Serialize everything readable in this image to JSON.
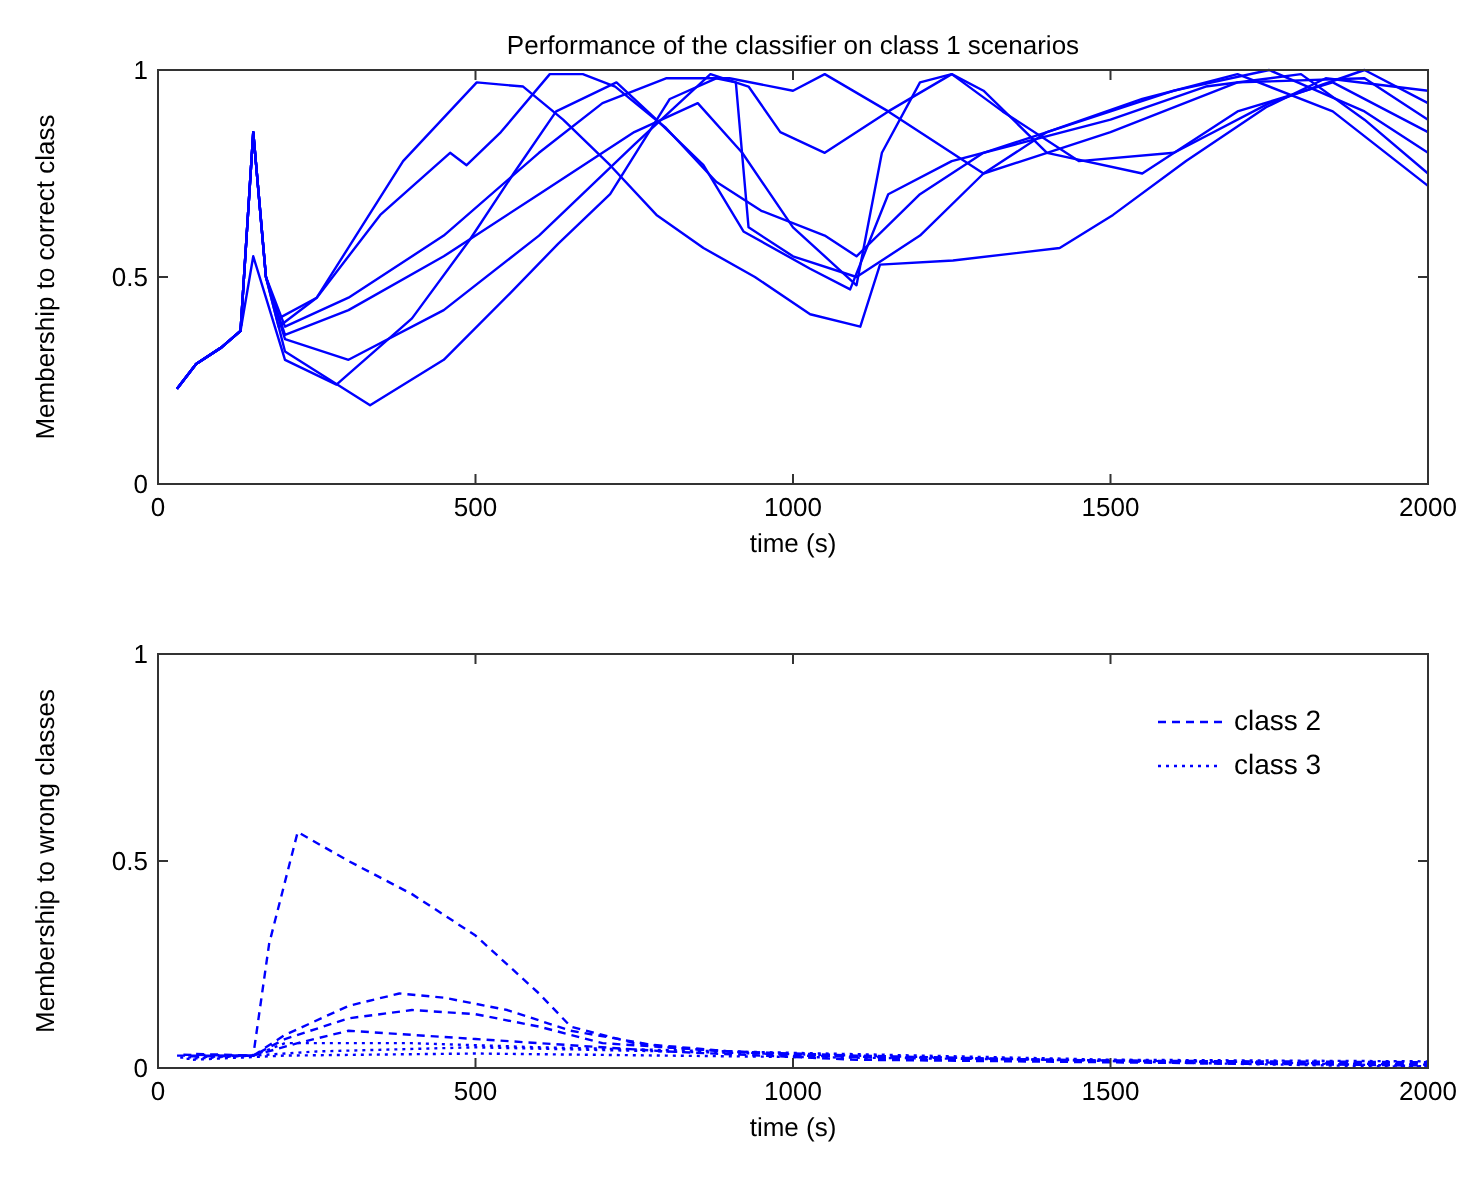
{
  "chart_data": [
    {
      "type": "line",
      "title": "Performance of the classifier on class 1 scenarios",
      "xlabel": "time (s)",
      "ylabel": "Membership to correct class",
      "xlim": [
        0,
        2000
      ],
      "xticks": [
        0,
        500,
        1000,
        1500,
        2000
      ],
      "ylim": [
        0,
        1
      ],
      "yticks": [
        0,
        0.5,
        1
      ],
      "grid": false,
      "legend": false,
      "line_style": "solid",
      "series": [
        {
          "color": "#0000ff",
          "x": [
            30,
            60,
            100,
            130,
            150,
            170,
            190,
            250,
            386,
            502,
            575,
            638,
            712,
            785,
            859,
            940,
            1027,
            1106,
            1137,
            1252,
            1420,
            1504,
            1619,
            1745,
            1839,
            2000
          ],
          "values": [
            0.23,
            0.29,
            0.33,
            0.37,
            0.85,
            0.5,
            0.4,
            0.45,
            0.78,
            0.97,
            0.96,
            0.88,
            0.77,
            0.65,
            0.57,
            0.5,
            0.41,
            0.38,
            0.53,
            0.54,
            0.57,
            0.65,
            0.78,
            0.91,
            0.98,
            0.95
          ]
        },
        {
          "color": "#0000ff",
          "x": [
            30,
            60,
            100,
            130,
            150,
            170,
            190,
            250,
            350,
            460,
            486,
            540,
            617,
            669,
            720,
            800,
            879,
            950,
            1050,
            1100,
            1200,
            1300,
            1400,
            1500,
            1600,
            1750,
            1900,
            2000
          ],
          "values": [
            0.23,
            0.29,
            0.33,
            0.37,
            0.85,
            0.5,
            0.38,
            0.45,
            0.65,
            0.8,
            0.77,
            0.85,
            0.99,
            0.99,
            0.96,
            0.86,
            0.73,
            0.66,
            0.6,
            0.55,
            0.7,
            0.8,
            0.85,
            0.9,
            0.95,
            1,
            0.9,
            0.8
          ]
        },
        {
          "color": "#0000ff",
          "x": [
            30,
            60,
            100,
            130,
            150,
            170,
            200,
            281,
            400,
            491,
            560,
            627,
            722,
            785,
            859,
            922,
            1027,
            1090,
            1150,
            1250,
            1350,
            1500,
            1650,
            1800,
            1900,
            2000
          ],
          "values": [
            0.23,
            0.29,
            0.33,
            0.37,
            0.55,
            0.45,
            0.3,
            0.24,
            0.4,
            0.59,
            0.75,
            0.9,
            0.97,
            0.88,
            0.77,
            0.61,
            0.52,
            0.47,
            0.7,
            0.78,
            0.82,
            0.88,
            0.96,
            0.99,
            0.88,
            0.75
          ]
        },
        {
          "color": "#0000ff",
          "x": [
            30,
            60,
            100,
            130,
            150,
            170,
            200,
            334,
            450,
            554,
            630,
            712,
            806,
            879,
            910,
            930,
            1000,
            1100,
            1200,
            1300,
            1400,
            1550,
            1700,
            1850,
            2000
          ],
          "values": [
            0.23,
            0.29,
            0.33,
            0.37,
            0.85,
            0.5,
            0.32,
            0.19,
            0.3,
            0.46,
            0.58,
            0.7,
            0.93,
            0.98,
            0.97,
            0.62,
            0.55,
            0.5,
            0.6,
            0.75,
            0.85,
            0.93,
            0.99,
            0.9,
            0.72
          ]
        },
        {
          "color": "#0000ff",
          "x": [
            30,
            60,
            100,
            130,
            150,
            170,
            200,
            300,
            450,
            600,
            750,
            870,
            930,
            980,
            1050,
            1150,
            1250,
            1300,
            1400,
            1550,
            1700,
            1850,
            2000
          ],
          "values": [
            0.23,
            0.29,
            0.33,
            0.37,
            0.85,
            0.5,
            0.35,
            0.3,
            0.42,
            0.6,
            0.82,
            0.99,
            0.96,
            0.85,
            0.8,
            0.9,
            0.99,
            0.95,
            0.8,
            0.75,
            0.9,
            0.97,
            0.85
          ]
        },
        {
          "color": "#0000ff",
          "x": [
            30,
            60,
            100,
            130,
            150,
            170,
            200,
            300,
            450,
            600,
            750,
            850,
            920,
            1000,
            1100,
            1140,
            1200,
            1250,
            1330,
            1450,
            1600,
            1750,
            1900,
            2000
          ],
          "values": [
            0.23,
            0.29,
            0.33,
            0.37,
            0.85,
            0.5,
            0.36,
            0.42,
            0.55,
            0.7,
            0.85,
            0.92,
            0.8,
            0.62,
            0.48,
            0.8,
            0.97,
            0.99,
            0.9,
            0.78,
            0.8,
            0.92,
            1,
            0.92
          ]
        },
        {
          "color": "#0000ff",
          "x": [
            30,
            60,
            100,
            130,
            150,
            170,
            200,
            300,
            450,
            600,
            700,
            800,
            900,
            1000,
            1050,
            1150,
            1300,
            1500,
            1700,
            1900,
            2000
          ],
          "values": [
            0.23,
            0.29,
            0.33,
            0.37,
            0.85,
            0.5,
            0.38,
            0.45,
            0.6,
            0.8,
            0.92,
            0.98,
            0.98,
            0.95,
            0.99,
            0.9,
            0.75,
            0.85,
            0.97,
            0.98,
            0.88
          ]
        }
      ]
    },
    {
      "type": "line",
      "xlabel": "time (s)",
      "ylabel": "Membership to wrong classes",
      "xlim": [
        0,
        2000
      ],
      "xticks": [
        0,
        500,
        1000,
        1500,
        2000
      ],
      "ylim": [
        0,
        1
      ],
      "yticks": [
        0,
        0.5,
        1
      ],
      "grid": false,
      "legend": "top right",
      "series": [
        {
          "name": "class 2",
          "color": "#0000ff",
          "line_style": "dashed",
          "x": [
            30,
            100,
            150,
            175,
            220,
            300,
            400,
            500,
            600,
            650,
            750,
            900,
            1100,
            1400,
            1700,
            2000
          ],
          "values": [
            0.03,
            0.03,
            0.03,
            0.3,
            0.57,
            0.5,
            0.42,
            0.32,
            0.18,
            0.1,
            0.06,
            0.04,
            0.03,
            0.02,
            0.01,
            0.012
          ]
        },
        {
          "color": "#0000ff",
          "line_style": "dashed",
          "x": [
            40,
            150,
            200,
            300,
            380,
            450,
            550,
            650,
            800,
            1000,
            1400,
            2000
          ],
          "values": [
            0.032,
            0.03,
            0.08,
            0.15,
            0.18,
            0.17,
            0.14,
            0.09,
            0.05,
            0.03,
            0.02,
            0.008
          ]
        },
        {
          "color": "#0000ff",
          "line_style": "dashed",
          "x": [
            50,
            150,
            200,
            300,
            400,
            500,
            600,
            700,
            900,
            1200,
            2000
          ],
          "values": [
            0.028,
            0.03,
            0.07,
            0.12,
            0.14,
            0.13,
            0.1,
            0.06,
            0.04,
            0.02,
            0.014
          ]
        },
        {
          "color": "#0000ff",
          "line_style": "dashed",
          "x": [
            60,
            150,
            220,
            300,
            400,
            500,
            600,
            800,
            1100,
            2000
          ],
          "values": [
            0.034,
            0.03,
            0.06,
            0.09,
            0.08,
            0.07,
            0.06,
            0.04,
            0.02,
            0.006
          ]
        },
        {
          "name": "class 3",
          "color": "#0000ff",
          "line_style": "dotted",
          "x": [
            35,
            150,
            200,
            400,
            600,
            900,
            1200,
            1500,
            2000
          ],
          "values": [
            0.025,
            0.03,
            0.06,
            0.06,
            0.05,
            0.04,
            0.03,
            0.02,
            0.016
          ]
        },
        {
          "color": "#0000ff",
          "line_style": "dotted",
          "x": [
            45,
            150,
            250,
            500,
            800,
            1100,
            1400,
            1700,
            2000
          ],
          "values": [
            0.022,
            0.03,
            0.04,
            0.05,
            0.04,
            0.03,
            0.02,
            0.015,
            0.004
          ]
        },
        {
          "color": "#0000ff",
          "line_style": "dotted",
          "x": [
            55,
            200,
            500,
            800,
            1100,
            1400,
            1700,
            2000
          ],
          "values": [
            0.02,
            0.03,
            0.035,
            0.03,
            0.025,
            0.02,
            0.01,
            0.002
          ]
        }
      ]
    }
  ]
}
